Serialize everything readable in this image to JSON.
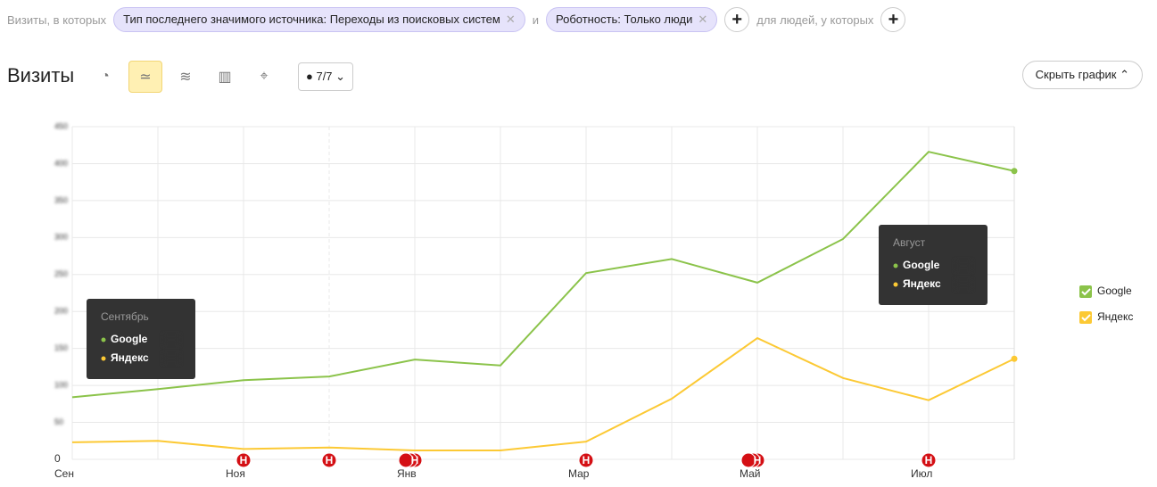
{
  "filter_bar": {
    "prefix": "Визиты, в которых",
    "chips": [
      "Тип последнего значимого источника: Переходы из поисковых систем",
      "Роботность: Только люди"
    ],
    "joiner": "и",
    "people_label": "для людей, у которых"
  },
  "toolbar": {
    "period": "7/7",
    "hide_button": "Скрыть график"
  },
  "chart_data": {
    "type": "line",
    "title": "Визиты",
    "categories": [
      "Сен",
      null,
      "Ноя",
      null,
      "Янв",
      null,
      "Мар",
      null,
      "Май",
      null,
      "Июл",
      null
    ],
    "series": [
      {
        "name": "Google",
        "color": "#8bc34a",
        "values": [
          84,
          95,
          107,
          112,
          135,
          127,
          252,
          271,
          239,
          298,
          416,
          390
        ]
      },
      {
        "name": "Яндекс",
        "color": "#fcc934",
        "values": [
          23,
          25,
          14,
          16,
          12,
          12,
          24,
          82,
          164,
          110,
          80,
          136
        ]
      }
    ],
    "ylim": [
      0,
      450
    ],
    "yticks": [
      0,
      50,
      100,
      150,
      200,
      250,
      300,
      350,
      400,
      450
    ],
    "grid": true,
    "legend": "right",
    "tooltips": [
      {
        "title": "Сентябрь"
      },
      {
        "title": "Август"
      }
    ],
    "notes": [
      {
        "x": 2,
        "label": "Н",
        "count": 1
      },
      {
        "x": 3,
        "label": "Н",
        "count": 1
      },
      {
        "x": 4,
        "label": "Н",
        "count": 3
      },
      {
        "x": 6,
        "label": "Н",
        "count": 1
      },
      {
        "x": 8,
        "label": "Н",
        "count": 3
      },
      {
        "x": 10,
        "label": "Н",
        "count": 1
      }
    ]
  }
}
